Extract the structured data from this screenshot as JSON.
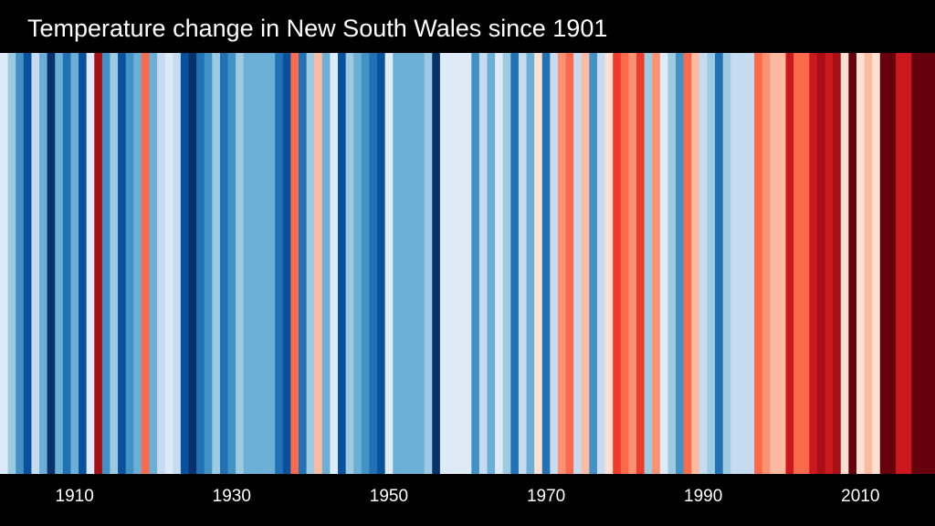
{
  "chart_data": {
    "type": "heatmap",
    "title": "Temperature change in New South Wales since 1901",
    "x_start": 1901,
    "x_end": 2019,
    "xticks": [
      {
        "value": 1910,
        "label": "1910"
      },
      {
        "value": 1930,
        "label": "1930"
      },
      {
        "value": 1950,
        "label": "1950"
      },
      {
        "value": 1970,
        "label": "1970"
      },
      {
        "value": 1990,
        "label": "1990"
      },
      {
        "value": 2010,
        "label": "2010"
      }
    ],
    "colors": {
      "background": "#000000",
      "text": "#ffffff"
    },
    "palette": [
      "#08306b",
      "#08519c",
      "#2171b5",
      "#4292c6",
      "#6baed6",
      "#9ecae1",
      "#c6dbef",
      "#deebf7",
      "#fee0d2",
      "#fcbba1",
      "#fc9272",
      "#fb6a4a",
      "#ef3b2c",
      "#cb181d",
      "#a50f15",
      "#67000d"
    ],
    "stripes": [
      {
        "year": 1901,
        "level": 7
      },
      {
        "year": 1902,
        "level": 5
      },
      {
        "year": 1903,
        "level": 3
      },
      {
        "year": 1904,
        "level": 1
      },
      {
        "year": 1905,
        "level": 6
      },
      {
        "year": 1906,
        "level": 4
      },
      {
        "year": 1907,
        "level": 0
      },
      {
        "year": 1908,
        "level": 4
      },
      {
        "year": 1909,
        "level": 2
      },
      {
        "year": 1910,
        "level": 4
      },
      {
        "year": 1911,
        "level": 1
      },
      {
        "year": 1912,
        "level": 7
      },
      {
        "year": 1913,
        "level": 14
      },
      {
        "year": 1914,
        "level": 3
      },
      {
        "year": 1915,
        "level": 5
      },
      {
        "year": 1916,
        "level": 1
      },
      {
        "year": 1917,
        "level": 3
      },
      {
        "year": 1918,
        "level": 4
      },
      {
        "year": 1919,
        "level": 11
      },
      {
        "year": 1920,
        "level": 4
      },
      {
        "year": 1921,
        "level": 6
      },
      {
        "year": 1922,
        "level": 7
      },
      {
        "year": 1923,
        "level": 6
      },
      {
        "year": 1924,
        "level": 1
      },
      {
        "year": 1925,
        "level": 0
      },
      {
        "year": 1926,
        "level": 2
      },
      {
        "year": 1927,
        "level": 3
      },
      {
        "year": 1928,
        "level": 5
      },
      {
        "year": 1929,
        "level": 2
      },
      {
        "year": 1930,
        "level": 3
      },
      {
        "year": 1931,
        "level": 5
      },
      {
        "year": 1932,
        "level": 4
      },
      {
        "year": 1933,
        "level": 4
      },
      {
        "year": 1934,
        "level": 4
      },
      {
        "year": 1935,
        "level": 4
      },
      {
        "year": 1936,
        "level": 2
      },
      {
        "year": 1937,
        "level": 1
      },
      {
        "year": 1938,
        "level": 11
      },
      {
        "year": 1939,
        "level": 2
      },
      {
        "year": 1940,
        "level": 5
      },
      {
        "year": 1941,
        "level": 9
      },
      {
        "year": 1942,
        "level": 4
      },
      {
        "year": 1943,
        "level": 7
      },
      {
        "year": 1944,
        "level": 1
      },
      {
        "year": 1945,
        "level": 5
      },
      {
        "year": 1946,
        "level": 4
      },
      {
        "year": 1947,
        "level": 3
      },
      {
        "year": 1948,
        "level": 2
      },
      {
        "year": 1949,
        "level": 1
      },
      {
        "year": 1950,
        "level": 7
      },
      {
        "year": 1951,
        "level": 4
      },
      {
        "year": 1952,
        "level": 4
      },
      {
        "year": 1953,
        "level": 4
      },
      {
        "year": 1954,
        "level": 4
      },
      {
        "year": 1955,
        "level": 5
      },
      {
        "year": 1956,
        "level": 0
      },
      {
        "year": 1957,
        "level": 7
      },
      {
        "year": 1958,
        "level": 7
      },
      {
        "year": 1959,
        "level": 7
      },
      {
        "year": 1960,
        "level": 7
      },
      {
        "year": 1961,
        "level": 3
      },
      {
        "year": 1962,
        "level": 6
      },
      {
        "year": 1963,
        "level": 4
      },
      {
        "year": 1964,
        "level": 7
      },
      {
        "year": 1965,
        "level": 5
      },
      {
        "year": 1966,
        "level": 2
      },
      {
        "year": 1967,
        "level": 6
      },
      {
        "year": 1968,
        "level": 4
      },
      {
        "year": 1969,
        "level": 8
      },
      {
        "year": 1970,
        "level": 2
      },
      {
        "year": 1971,
        "level": 6
      },
      {
        "year": 1972,
        "level": 10
      },
      {
        "year": 1973,
        "level": 11
      },
      {
        "year": 1974,
        "level": 6
      },
      {
        "year": 1975,
        "level": 9
      },
      {
        "year": 1976,
        "level": 3
      },
      {
        "year": 1977,
        "level": 6
      },
      {
        "year": 1978,
        "level": 8
      },
      {
        "year": 1979,
        "level": 12
      },
      {
        "year": 1980,
        "level": 11
      },
      {
        "year": 1981,
        "level": 10
      },
      {
        "year": 1982,
        "level": 12
      },
      {
        "year": 1983,
        "level": 5
      },
      {
        "year": 1984,
        "level": 10
      },
      {
        "year": 1985,
        "level": 7
      },
      {
        "year": 1986,
        "level": 5
      },
      {
        "year": 1987,
        "level": 3
      },
      {
        "year": 1988,
        "level": 11
      },
      {
        "year": 1989,
        "level": 9
      },
      {
        "year": 1990,
        "level": 6
      },
      {
        "year": 1991,
        "level": 5
      },
      {
        "year": 1992,
        "level": 2
      },
      {
        "year": 1993,
        "level": 5
      },
      {
        "year": 1994,
        "level": 6
      },
      {
        "year": 1995,
        "level": 6
      },
      {
        "year": 1996,
        "level": 6
      },
      {
        "year": 1997,
        "level": 11
      },
      {
        "year": 1998,
        "level": 10
      },
      {
        "year": 1999,
        "level": 9
      },
      {
        "year": 2000,
        "level": 9
      },
      {
        "year": 2001,
        "level": 13
      },
      {
        "year": 2002,
        "level": 11
      },
      {
        "year": 2003,
        "level": 11
      },
      {
        "year": 2004,
        "level": 13
      },
      {
        "year": 2005,
        "level": 14
      },
      {
        "year": 2006,
        "level": 13
      },
      {
        "year": 2007,
        "level": 14
      },
      {
        "year": 2008,
        "level": 8
      },
      {
        "year": 2009,
        "level": 15
      },
      {
        "year": 2010,
        "level": 8
      },
      {
        "year": 2011,
        "level": 9
      },
      {
        "year": 2012,
        "level": 8
      },
      {
        "year": 2013,
        "level": 15
      },
      {
        "year": 2014,
        "level": 15
      },
      {
        "year": 2015,
        "level": 13
      },
      {
        "year": 2016,
        "level": 13
      },
      {
        "year": 2017,
        "level": 15
      },
      {
        "year": 2018,
        "level": 15
      },
      {
        "year": 2019,
        "level": 15
      }
    ]
  }
}
